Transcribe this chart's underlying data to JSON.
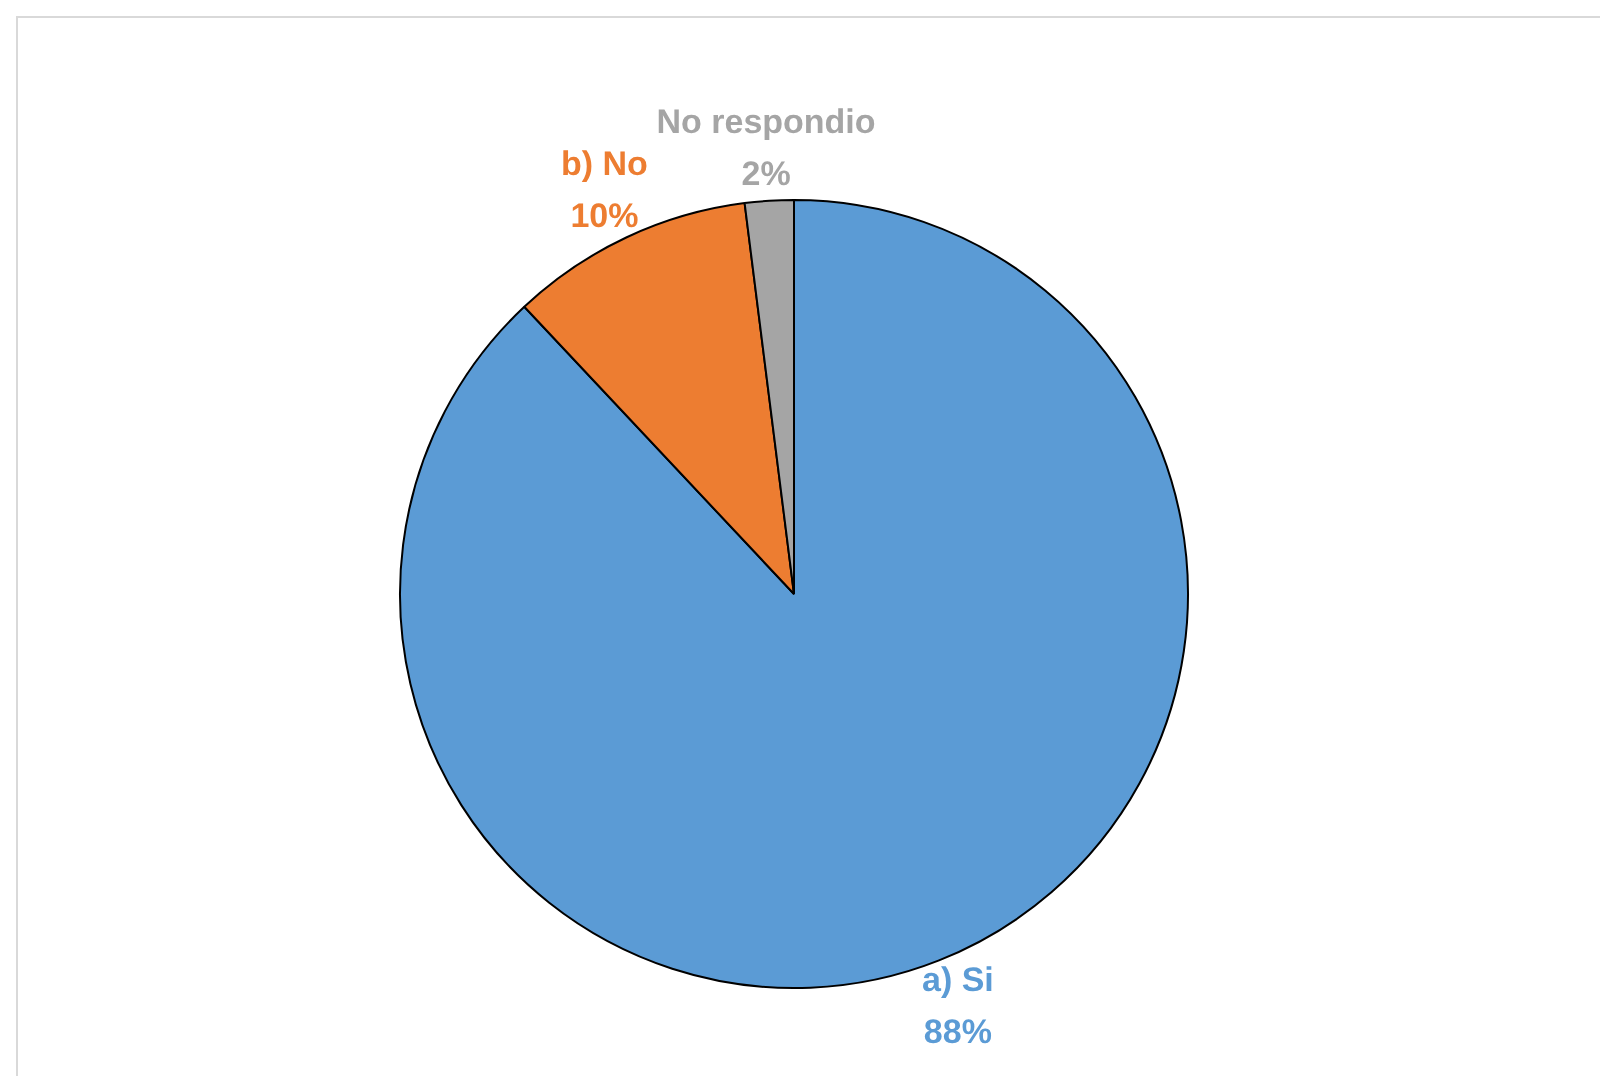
{
  "chart_data": {
    "type": "pie",
    "categories": [
      "a) Si",
      "b) No",
      "No respondio"
    ],
    "values": [
      88,
      10,
      2
    ],
    "colors": [
      "#5b9bd5",
      "#ed7d31",
      "#a5a5a5"
    ],
    "value_labels": [
      "88%",
      "10%",
      "2%"
    ],
    "legend": false
  }
}
